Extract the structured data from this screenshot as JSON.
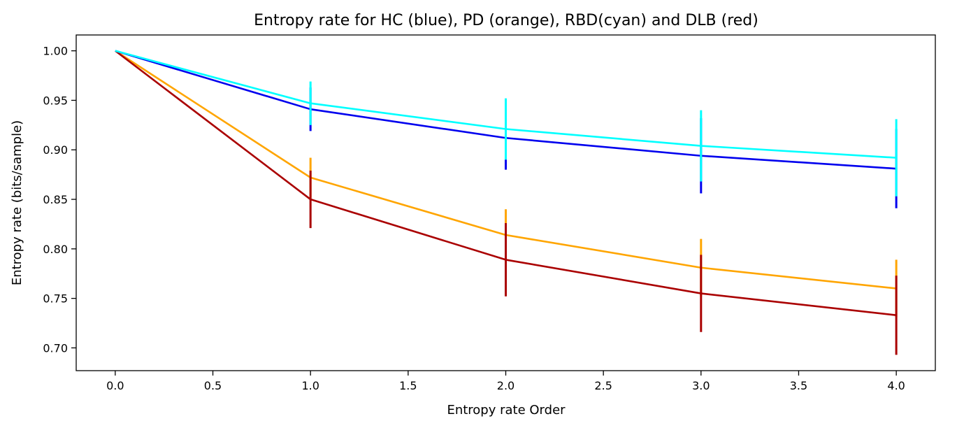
{
  "chart_data": {
    "type": "line",
    "title": "Entropy rate for HC (blue), PD (orange), RBD(cyan) and DLB (red)",
    "xlabel": "Entropy rate Order",
    "ylabel": "Entropy rate (bits/sample)",
    "xlim": [
      -0.2,
      4.2
    ],
    "ylim": [
      0.677,
      1.016
    ],
    "xticks": [
      0.0,
      0.5,
      1.0,
      1.5,
      2.0,
      2.5,
      3.0,
      3.5,
      4.0
    ],
    "xtick_labels": [
      "0.0",
      "0.5",
      "1.0",
      "1.5",
      "2.0",
      "2.5",
      "3.0",
      "3.5",
      "4.0"
    ],
    "yticks": [
      0.7,
      0.75,
      0.8,
      0.85,
      0.9,
      0.95,
      1.0
    ],
    "ytick_labels": [
      "0.70",
      "0.75",
      "0.80",
      "0.85",
      "0.90",
      "0.95",
      "1.00"
    ],
    "grid": false,
    "x": [
      0,
      1,
      2,
      3,
      4
    ],
    "series": [
      {
        "color": "#ffa500",
        "values": [
          1.0,
          0.872,
          0.814,
          0.781,
          0.76
        ],
        "errors": [
          0,
          0.02,
          0.026,
          0.029,
          0.029
        ]
      },
      {
        "color": "#aa0000",
        "values": [
          1.0,
          0.85,
          0.789,
          0.755,
          0.733
        ],
        "errors": [
          0,
          0.029,
          0.037,
          0.039,
          0.04
        ]
      },
      {
        "color": "#0000ee",
        "values": [
          1.0,
          0.941,
          0.912,
          0.894,
          0.881
        ],
        "errors": [
          0,
          0.022,
          0.032,
          0.038,
          0.04
        ]
      },
      {
        "color": "#00ffff",
        "values": [
          1.0,
          0.947,
          0.921,
          0.904,
          0.892
        ],
        "errors": [
          0,
          0.022,
          0.031,
          0.036,
          0.039
        ]
      }
    ]
  }
}
